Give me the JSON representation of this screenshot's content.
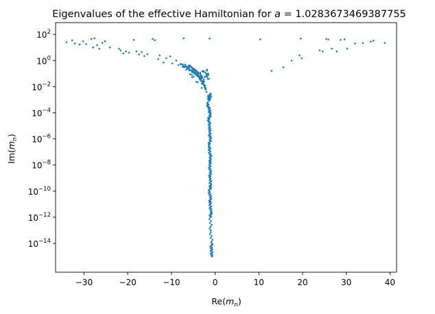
{
  "chart_data": {
    "type": "scatter",
    "title": {
      "prefix": "Eigenvalues of the effective Hamiltonian for ",
      "var": "a",
      "suffix": " = 1.0283673469387755"
    },
    "xlabel": {
      "func": "Re(",
      "var": "m",
      "sub": "n",
      "close": ")"
    },
    "ylabel": {
      "func": "Im(",
      "var": "m",
      "sub": "n",
      "close": ")"
    },
    "x_scale": "linear",
    "y_scale": "log",
    "xlim": [
      -36.5,
      41.5
    ],
    "ylim_log10": [
      -16.2,
      2.9
    ],
    "xticks": [
      {
        "value": -30,
        "label": "−30"
      },
      {
        "value": -20,
        "label": "−20"
      },
      {
        "value": -10,
        "label": "−10"
      },
      {
        "value": 0,
        "label": "0"
      },
      {
        "value": 10,
        "label": "10"
      },
      {
        "value": 20,
        "label": "20"
      },
      {
        "value": 30,
        "label": "30"
      },
      {
        "value": 40,
        "label": "40"
      }
    ],
    "yticks": [
      {
        "exp": 2,
        "label": "2"
      },
      {
        "exp": 0,
        "label": "0"
      },
      {
        "exp": -2,
        "label": "−2"
      },
      {
        "exp": -4,
        "label": "−4"
      },
      {
        "exp": -6,
        "label": "−6"
      },
      {
        "exp": -8,
        "label": "−8"
      },
      {
        "exp": -10,
        "label": "−10"
      },
      {
        "exp": -12,
        "label": "−12"
      },
      {
        "exp": -14,
        "label": "−14"
      }
    ],
    "grid": false,
    "legend": "none",
    "marker_color": "#1f77b4",
    "points": [
      {
        "x": -34.0,
        "y": 25
      },
      {
        "x": -32.7,
        "y": 35
      },
      {
        "x": -32.1,
        "y": 20
      },
      {
        "x": -31.0,
        "y": 17
      },
      {
        "x": -30.2,
        "y": 30
      },
      {
        "x": -29.5,
        "y": 18
      },
      {
        "x": -28.3,
        "y": 45
      },
      {
        "x": -27.9,
        "y": 10
      },
      {
        "x": -27.6,
        "y": 50
      },
      {
        "x": -27.0,
        "y": 15
      },
      {
        "x": -26.5,
        "y": 8
      },
      {
        "x": -25.8,
        "y": 22
      },
      {
        "x": -25.2,
        "y": 30
      },
      {
        "x": -24.1,
        "y": 10
      },
      {
        "x": -22.0,
        "y": 8
      },
      {
        "x": -21.6,
        "y": 6
      },
      {
        "x": -21.0,
        "y": 3.5
      },
      {
        "x": -20.4,
        "y": 5
      },
      {
        "x": -19.7,
        "y": 4
      },
      {
        "x": -18.6,
        "y": 38
      },
      {
        "x": -18.0,
        "y": 5
      },
      {
        "x": -17.4,
        "y": 3
      },
      {
        "x": -16.8,
        "y": 4.5
      },
      {
        "x": -16.2,
        "y": 2.2
      },
      {
        "x": -15.5,
        "y": 3
      },
      {
        "x": -14.3,
        "y": 45
      },
      {
        "x": -13.8,
        "y": 36
      },
      {
        "x": -13.0,
        "y": 1.3
      },
      {
        "x": -12.7,
        "y": 2.5
      },
      {
        "x": -11.8,
        "y": 0.7
      },
      {
        "x": -11.2,
        "y": 1.5
      },
      {
        "x": -10.3,
        "y": 2.1
      },
      {
        "x": -9.8,
        "y": 0.6
      },
      {
        "x": -8.9,
        "y": 1.0
      },
      {
        "x": -8.4,
        "y": 0.45
      },
      {
        "x": -7.2,
        "y": 50
      },
      {
        "x": -1.3,
        "y": 48
      },
      {
        "x": 10.3,
        "y": 42
      },
      {
        "x": 12.9,
        "y": 0.16
      },
      {
        "x": 15.6,
        "y": 0.3
      },
      {
        "x": 17.5,
        "y": 1.0
      },
      {
        "x": 19.3,
        "y": 2.5
      },
      {
        "x": 19.8,
        "y": 1.5
      },
      {
        "x": 19.6,
        "y": 48
      },
      {
        "x": 23.9,
        "y": 6
      },
      {
        "x": 24.6,
        "y": 5
      },
      {
        "x": 25.4,
        "y": 45
      },
      {
        "x": 25.9,
        "y": 40
      },
      {
        "x": 26.7,
        "y": 8
      },
      {
        "x": 27.8,
        "y": 5
      },
      {
        "x": 28.7,
        "y": 38
      },
      {
        "x": 29.6,
        "y": 42
      },
      {
        "x": 30.2,
        "y": 8
      },
      {
        "x": 32.0,
        "y": 20
      },
      {
        "x": 33.8,
        "y": 22
      },
      {
        "x": 35.6,
        "y": 28
      },
      {
        "x": 36.2,
        "y": 33
      },
      {
        "x": 38.8,
        "y": 22
      }
    ],
    "dense_branch": {
      "description_free_samples": true,
      "shoulder": [
        {
          "x": -7.9,
          "y": 0.55
        },
        {
          "x": -7.4,
          "y": 0.35
        },
        {
          "x": -6.9,
          "y": 0.48
        },
        {
          "x": -6.4,
          "y": 0.3
        },
        {
          "x": -6.0,
          "y": 0.22
        },
        {
          "x": -5.7,
          "y": 0.4
        },
        {
          "x": -5.3,
          "y": 0.15
        },
        {
          "x": -5.0,
          "y": 0.25
        },
        {
          "x": -4.7,
          "y": 0.1
        },
        {
          "x": -4.4,
          "y": 0.18
        },
        {
          "x": -4.1,
          "y": 0.07
        },
        {
          "x": -3.9,
          "y": 0.12
        },
        {
          "x": -3.6,
          "y": 0.05
        },
        {
          "x": -3.3,
          "y": 0.03
        },
        {
          "x": -3.0,
          "y": 0.06
        },
        {
          "x": -2.8,
          "y": 0.02
        },
        {
          "x": -2.5,
          "y": 0.012
        },
        {
          "x": -2.2,
          "y": 0.008
        },
        {
          "x": -2.0,
          "y": 0.004
        },
        {
          "x": -3.4,
          "y": 0.09
        },
        {
          "x": -2.6,
          "y": 0.035
        },
        {
          "x": -1.9,
          "y": 0.2
        },
        {
          "x": -1.6,
          "y": 0.1
        },
        {
          "x": -1.4,
          "y": 0.04
        },
        {
          "x": -2.9,
          "y": 0.15
        },
        {
          "x": -4.9,
          "y": 0.06
        },
        {
          "x": -6.6,
          "y": 0.2
        },
        {
          "x": -3.1,
          "y": 0.008
        }
      ],
      "spine": [
        {
          "x": -1.6,
          "y": 0.002
        },
        {
          "x": -1.3,
          "y": 0.0009
        },
        {
          "x": -1.0,
          "y": 0.003
        },
        {
          "x": -1.8,
          "y": 0.0005
        },
        {
          "x": -1.4,
          "y": 0.0002
        },
        {
          "x": -1.1,
          "y": 8e-05
        },
        {
          "x": -1.5,
          "y": 3e-05
        },
        {
          "x": -1.2,
          "y": 1e-05
        },
        {
          "x": -1.3,
          "y": 3e-06
        },
        {
          "x": -1.1,
          "y": 1e-06
        },
        {
          "x": -1.4,
          "y": 3e-07
        },
        {
          "x": -1.2,
          "y": 1e-07
        },
        {
          "x": -1.0,
          "y": 3e-08
        },
        {
          "x": -1.3,
          "y": 1e-08
        },
        {
          "x": -1.1,
          "y": 3e-09
        },
        {
          "x": -1.2,
          "y": 1e-09
        },
        {
          "x": -1.0,
          "y": 3e-10
        },
        {
          "x": -1.3,
          "y": 1e-10
        },
        {
          "x": -1.1,
          "y": 3e-11
        },
        {
          "x": -1.2,
          "y": 1e-11
        },
        {
          "x": -0.9,
          "y": 3e-12
        },
        {
          "x": -1.1,
          "y": 1e-12
        },
        {
          "x": -1.0,
          "y": 1e-13
        },
        {
          "x": -0.8,
          "y": 1e-14
        },
        {
          "x": -0.9,
          "y": 3e-15
        },
        {
          "x": -0.7,
          "y": 1e-15
        }
      ]
    }
  }
}
